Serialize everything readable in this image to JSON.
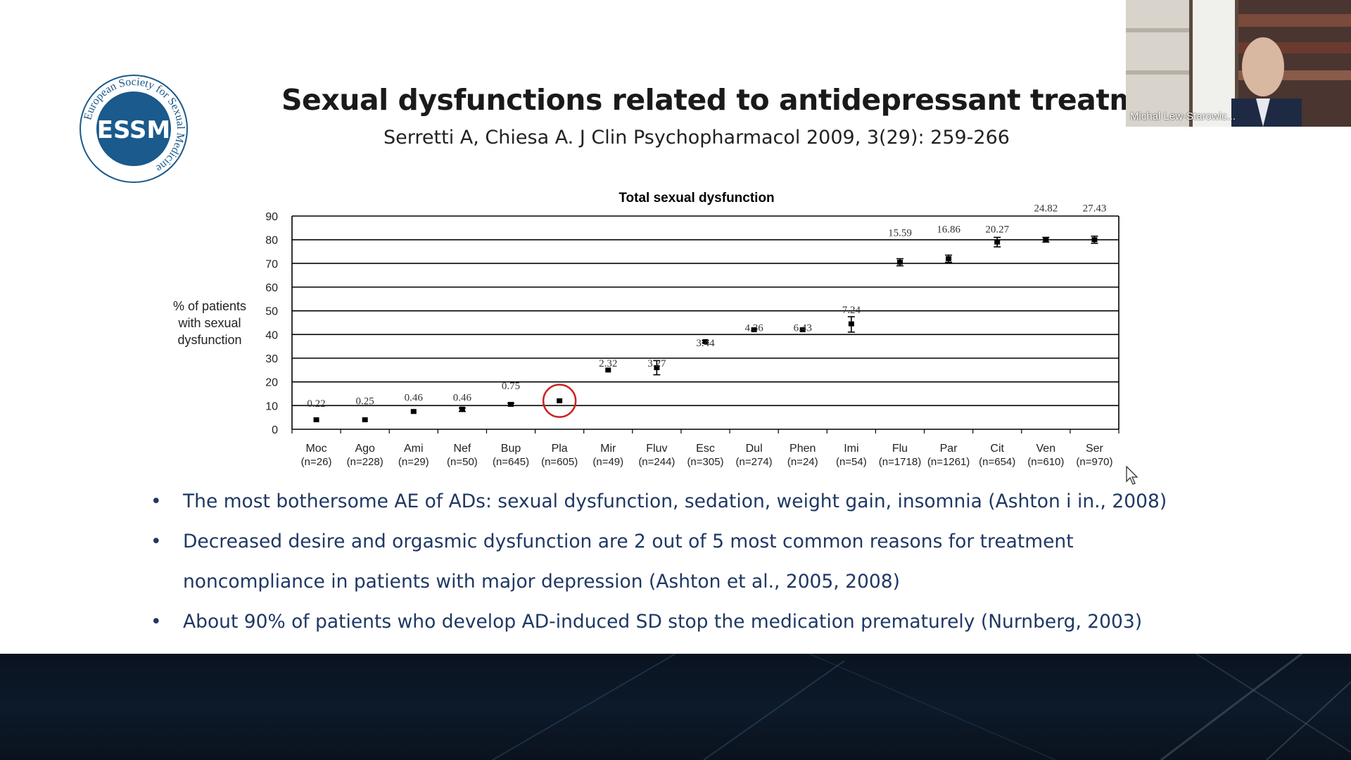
{
  "slide": {
    "logo": {
      "ring_text": "European Society for Sexual Medicine",
      "monogram": "ESSM",
      "color": "#1a5a8c"
    },
    "title": "Sexual dysfunctions related to antidepressant treatment",
    "citation": "Serretti  A, Chiesa A. J Clin Psychopharmacol  2009, 3(29): 259-266",
    "bullets": [
      "The most bothersome AE of ADs: sexual dysfunction, sedation, weight gain, insomnia (Ashton i in., 2008)",
      "Decreased desire and orgasmic dysfunction are 2 out of 5 most common reasons for treatment",
      "noncompliance in patients with major depression (Ashton et al., 2005, 2008)",
      "About 90% of patients who develop AD-induced SD stop the medication prematurely (Nurnberg, 2003)"
    ],
    "bullet_color": "#1f3864"
  },
  "chart_data": {
    "type": "scatter",
    "title": "Total sexual dysfunction",
    "ylabel_lines": [
      "% of patients",
      "with sexual",
      "dysfunction"
    ],
    "ylim": [
      0,
      90
    ],
    "yticks": [
      0,
      10,
      20,
      30,
      40,
      50,
      60,
      70,
      80,
      90
    ],
    "grid": true,
    "categories": [
      "Moc",
      "Ago",
      "Ami",
      "Nef",
      "Bup",
      "Pla",
      "Mir",
      "Fluv",
      "Esc",
      "Dul",
      "Phen",
      "Imi",
      "Flu",
      "Par",
      "Cit",
      "Ven",
      "Ser"
    ],
    "sample_sizes": [
      "(n=26)",
      "(n=228)",
      "(n=29)",
      "(n=50)",
      "(n=645)",
      "(n=605)",
      "(n=49)",
      "(n=244)",
      "(n=305)",
      "(n=274)",
      "(n=24)",
      "(n=54)",
      "(n=1718)",
      "(n=1261)",
      "(n=654)",
      "(n=610)",
      "(n=970)"
    ],
    "values": [
      4,
      4,
      7.5,
      8.5,
      10.5,
      12,
      25,
      26,
      37,
      42,
      42,
      44.5,
      70.5,
      72,
      79,
      80,
      80
    ],
    "error_low": [
      4,
      4,
      7.5,
      7.5,
      10,
      12,
      25,
      23,
      36.5,
      42,
      42,
      41,
      69,
      70.5,
      77,
      79,
      78.5
    ],
    "error_high": [
      4,
      4,
      7.5,
      9,
      11,
      12,
      25,
      29,
      37.5,
      42,
      42,
      47.5,
      72,
      73.5,
      81,
      81,
      81.5
    ],
    "data_labels": [
      "0.22",
      "0.25",
      "0.46",
      "0.46",
      "0.75",
      "",
      "2.32",
      "3.27",
      "3.44",
      "4.36",
      "6.43",
      "7.24",
      "15.59",
      "16.86",
      "20.27",
      "24.82",
      "27.43"
    ],
    "data_label_y": [
      9.5,
      10.5,
      12,
      12,
      17,
      null,
      26.5,
      26.5,
      35,
      41.5,
      41.5,
      49,
      81.5,
      83,
      83,
      92,
      92
    ],
    "highlight_category": "Pla",
    "highlight_color": "#cc2222"
  },
  "webcam": {
    "participant_name": "Michal Lew-Starowic..."
  }
}
